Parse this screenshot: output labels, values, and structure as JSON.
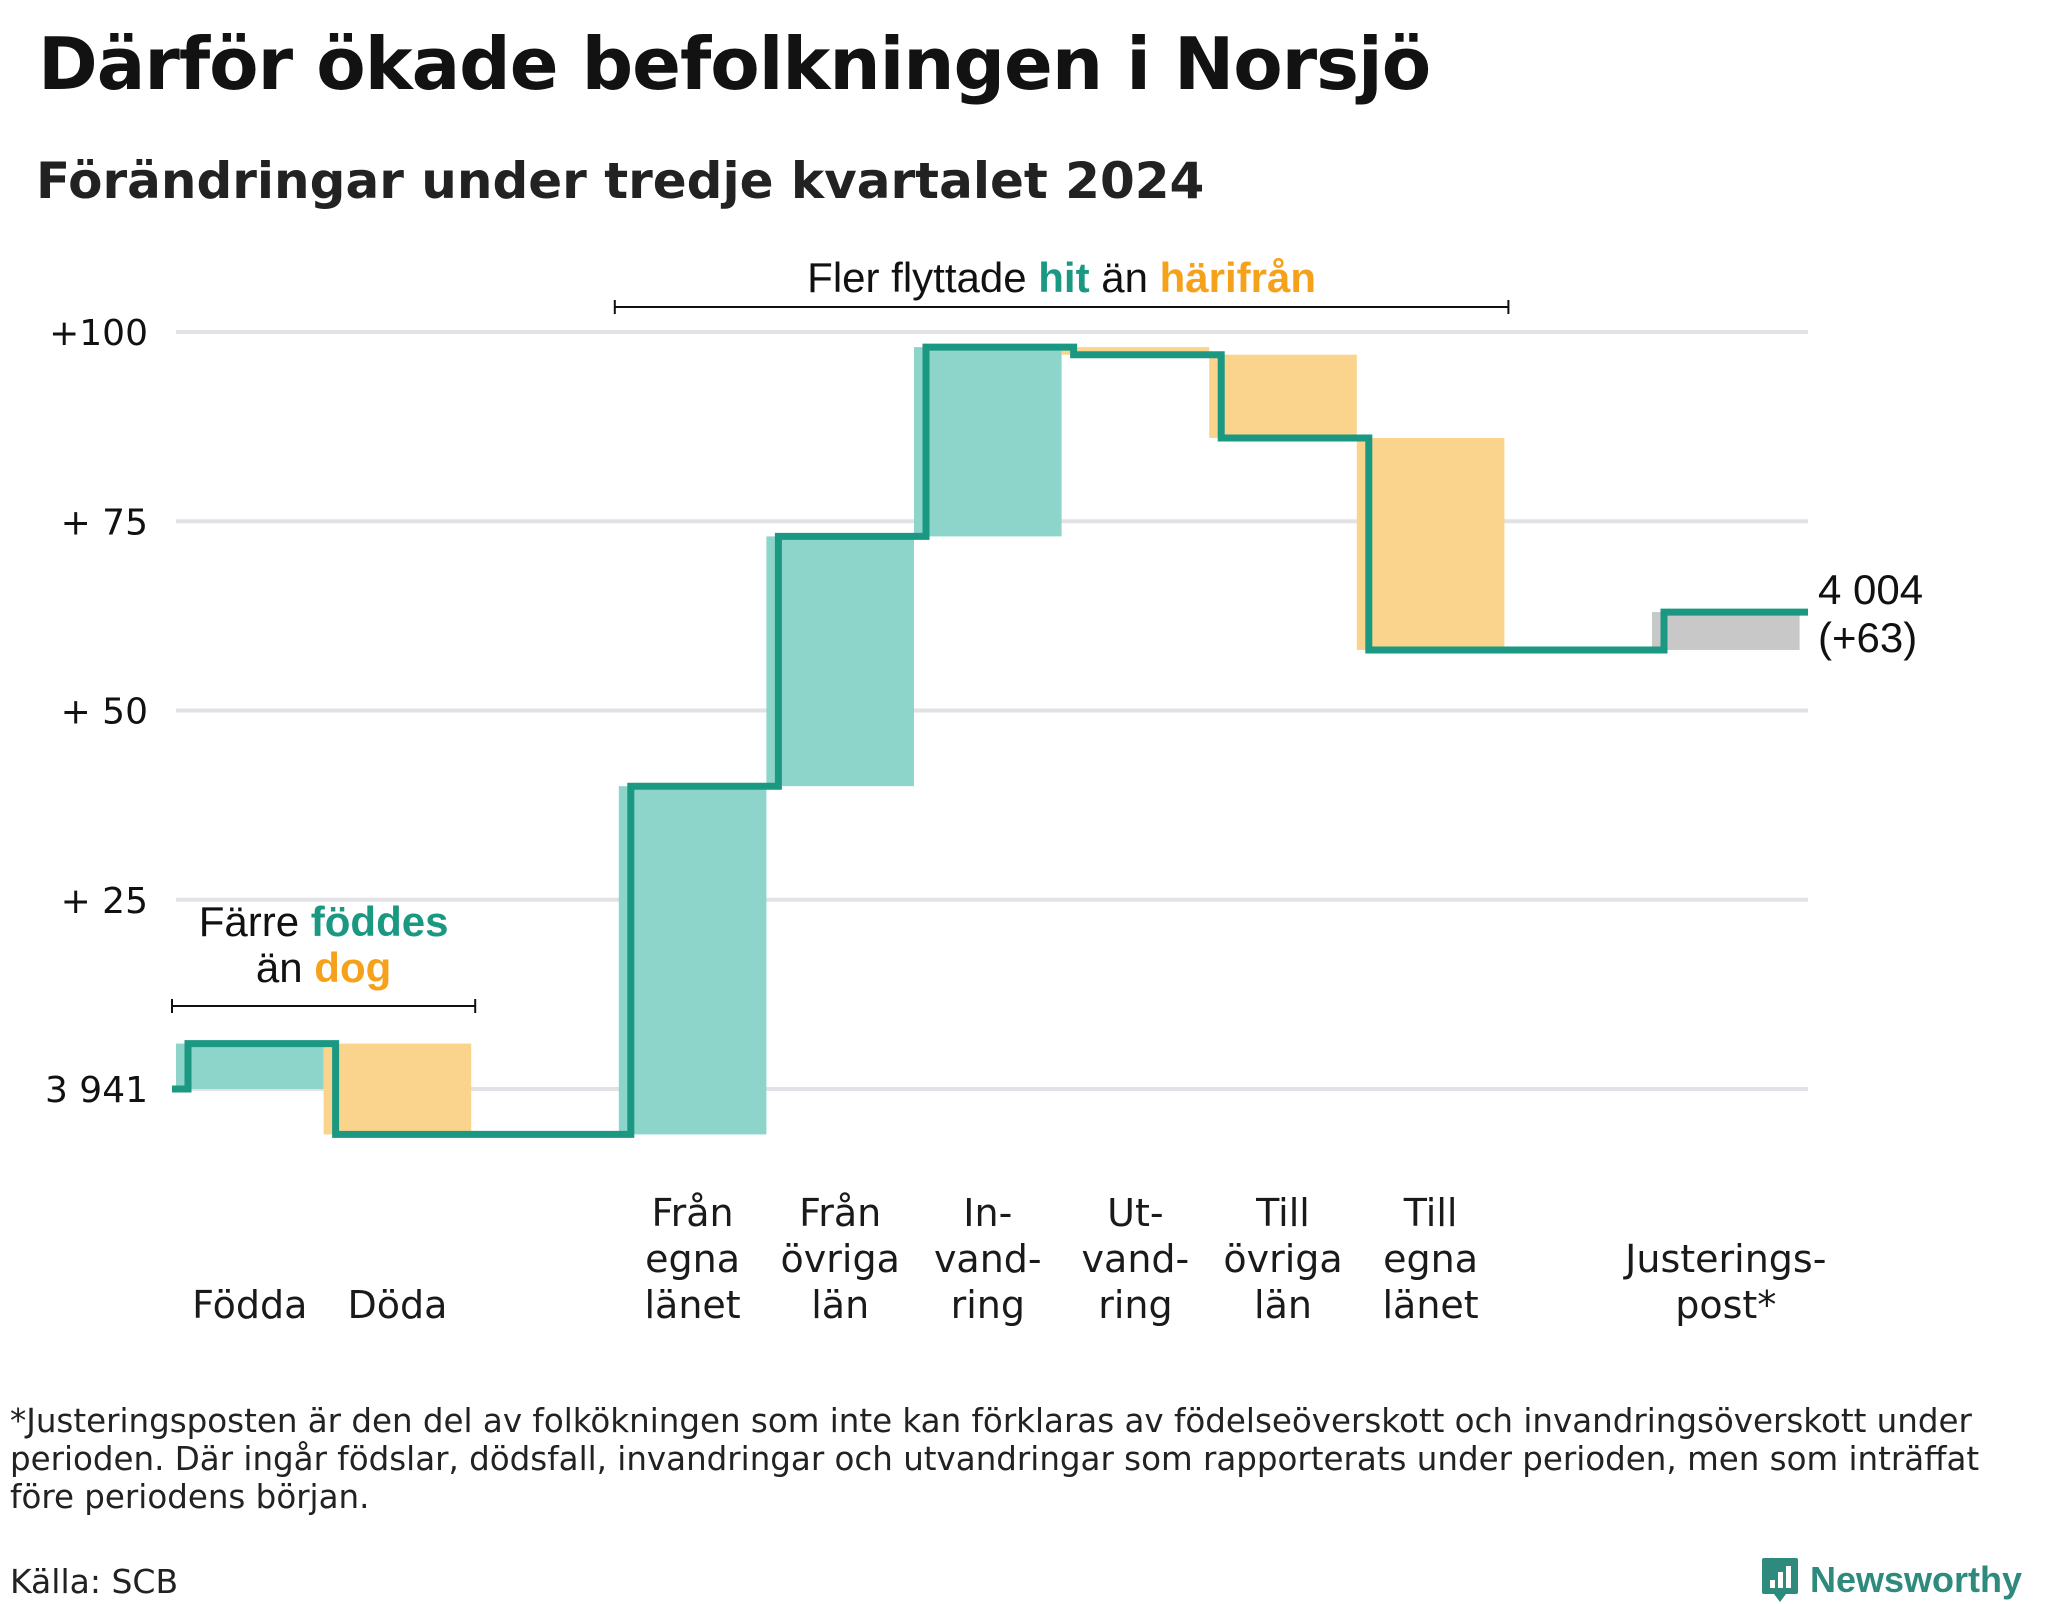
{
  "header": {
    "title": "Därför ökade befolkningen i Norsjö",
    "subtitle": "Förändringar under tredje kvartalet 2024"
  },
  "colors": {
    "line": "#1a9882",
    "increase": "#8dd4cb",
    "decrease": "#fad48c",
    "adjustment": "#c8c8c8",
    "highlight_green": "#1a9882",
    "highlight_orange": "#f5a11a",
    "grid": "#e2e2e6",
    "text": "#111111"
  },
  "chart_data": {
    "type": "waterfall",
    "start_value": 3941,
    "start_label": "3 941",
    "ylim": [
      -6,
      100
    ],
    "y_ticks": [
      {
        "value": 0,
        "label": "3 941"
      },
      {
        "value": 25,
        "label": "+ 25"
      },
      {
        "value": 50,
        "label": "+ 50"
      },
      {
        "value": 75,
        "label": "+ 75"
      },
      {
        "value": 100,
        "label": "+100"
      }
    ],
    "steps": [
      {
        "label": [
          "Födda"
        ],
        "delta": 6,
        "kind": "increase"
      },
      {
        "label": [
          "Döda"
        ],
        "delta": -12,
        "kind": "decrease"
      },
      {
        "label": [],
        "delta": 0,
        "kind": "none"
      },
      {
        "label": [
          "Från",
          "egna",
          "länet"
        ],
        "delta": 46,
        "kind": "increase"
      },
      {
        "label": [
          "Från",
          "övriga",
          "län"
        ],
        "delta": 33,
        "kind": "increase"
      },
      {
        "label": [
          "In-",
          "vand-",
          "ring"
        ],
        "delta": 25,
        "kind": "increase"
      },
      {
        "label": [
          "Ut-",
          "vand-",
          "ring"
        ],
        "delta": -1,
        "kind": "decrease"
      },
      {
        "label": [
          "Till",
          "övriga",
          "län"
        ],
        "delta": -11,
        "kind": "decrease"
      },
      {
        "label": [
          "Till",
          "egna",
          "länet"
        ],
        "delta": -28,
        "kind": "decrease"
      },
      {
        "label": [],
        "delta": 0,
        "kind": "none"
      },
      {
        "label": [
          "Justerings-",
          "post*"
        ],
        "delta": 5,
        "kind": "adjustment"
      }
    ],
    "end_value": 4004,
    "end_label": [
      "4 004",
      "(+63)"
    ],
    "annotations": [
      {
        "text_parts": [
          [
            "Färre ",
            "plain"
          ],
          [
            "föddes",
            "green"
          ]
        ],
        "text_parts2": [
          [
            "än ",
            "plain"
          ],
          [
            "dog",
            "orange"
          ]
        ],
        "span": [
          0,
          1
        ]
      },
      {
        "text_parts": [
          [
            "Fler flyttade ",
            "plain"
          ],
          [
            "hit",
            "green"
          ],
          [
            " än ",
            "plain"
          ],
          [
            "härifrån",
            "orange"
          ]
        ],
        "span": [
          3,
          8
        ]
      }
    ]
  },
  "footer": {
    "note": "*Justeringsposten är den del av folkökningen som inte kan förklaras av födelseöverskott och invandringsöverskott under perioden. Där ingår födslar, dödsfall, invandringar och utvandringar som rapporterats under perioden, men som inträffat före periodens början.",
    "source": "Källa: SCB",
    "brand": "Newsworthy"
  }
}
